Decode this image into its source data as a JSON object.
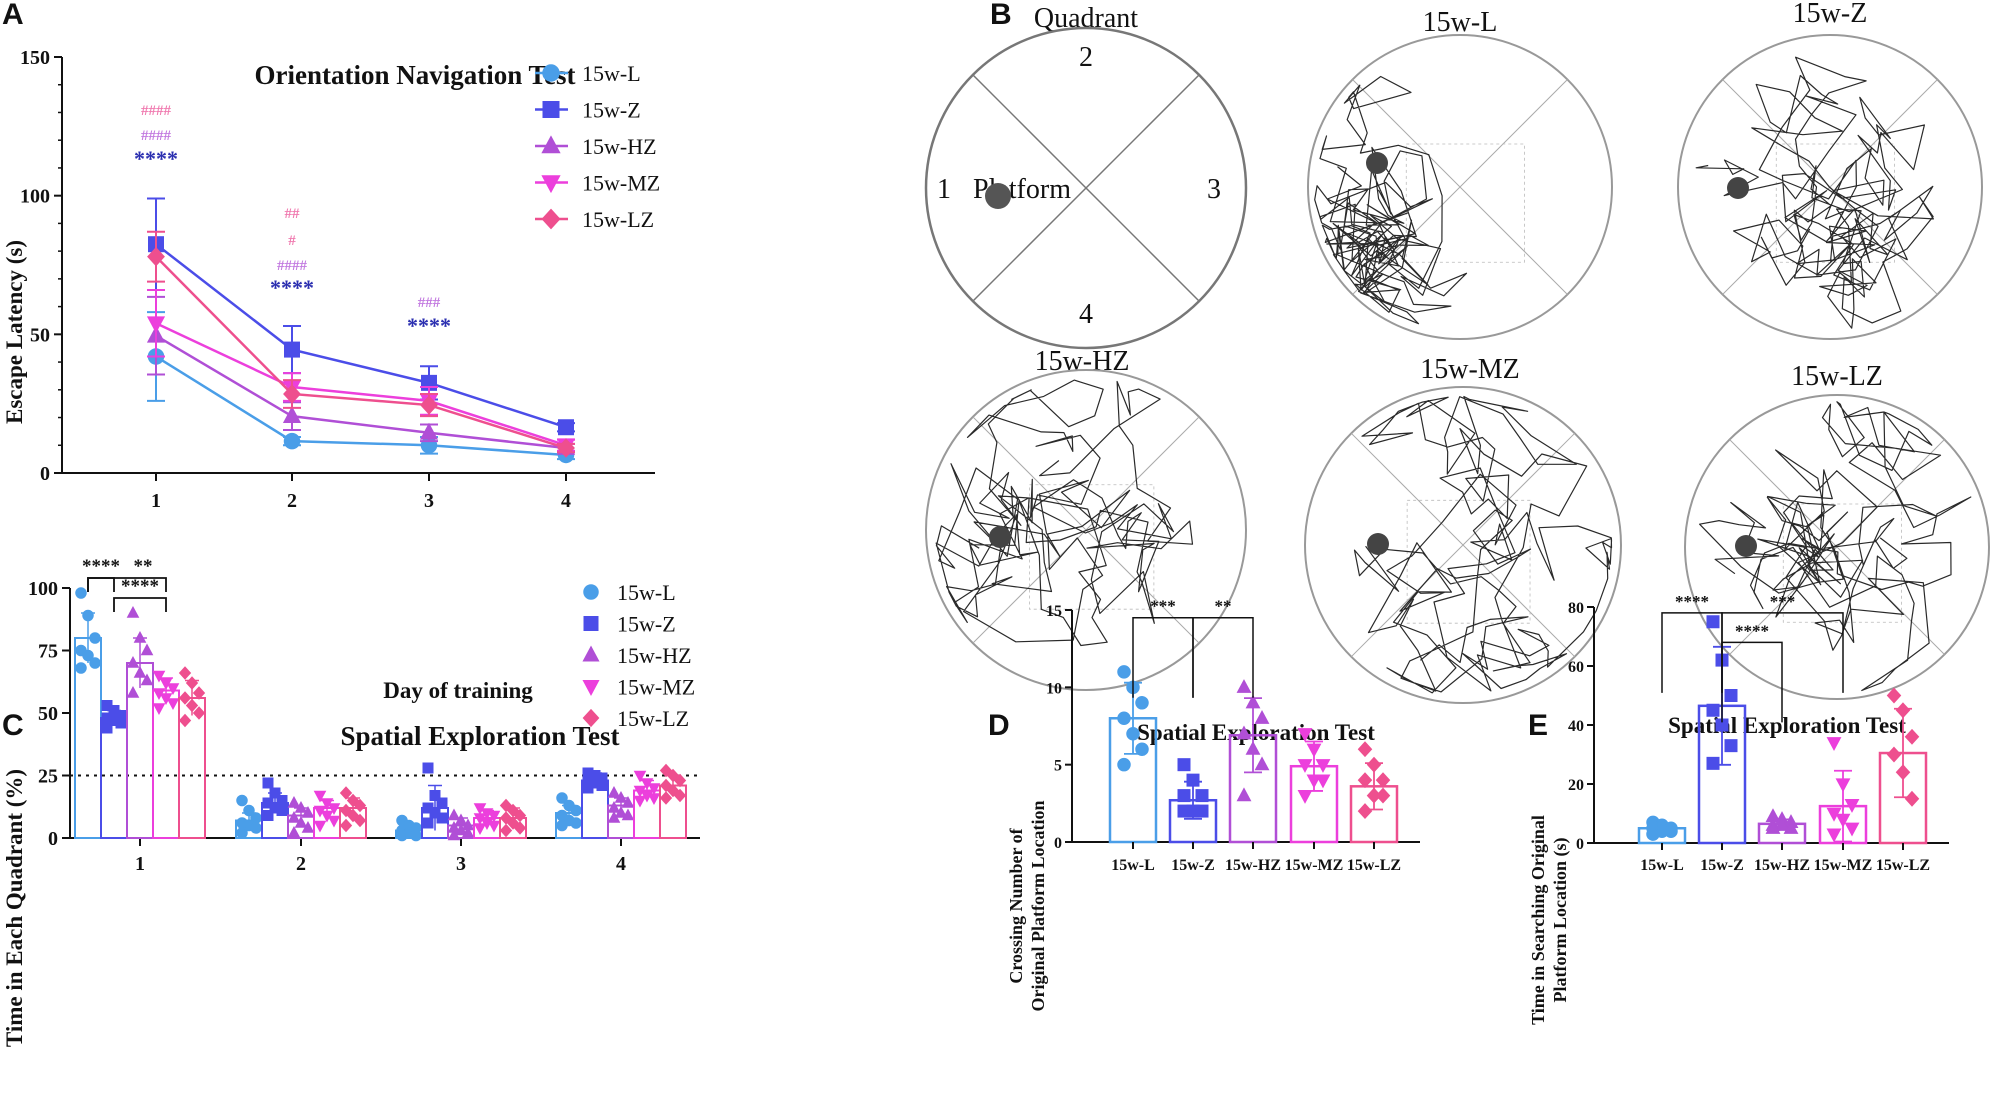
{
  "panel_labels": {
    "a": "A",
    "b": "B",
    "c": "C",
    "d": "D",
    "e": "E"
  },
  "colors": {
    "15w-L": "#4a9ee8",
    "15w-Z": "#4b4de8",
    "15w-HZ": "#b04fd6",
    "15w-MZ": "#ec3fdc",
    "15w-LZ": "#ee4f8e",
    "star": "#2b2fb0",
    "hash_HZ": "#c37be0",
    "hash_LZ": "#f07bb0",
    "track": "#2a2a2a"
  },
  "chart_data": [
    {
      "id": "A",
      "type": "line",
      "title": "Orientation Navigation Test",
      "xlabel": "Day of training",
      "ylabel": "Escape Latency (s)",
      "categories": [
        "1",
        "2",
        "3",
        "4"
      ],
      "ylim": [
        0,
        150
      ],
      "yticks": [
        "0",
        "50",
        "100",
        "150"
      ],
      "series": [
        {
          "name": "15w-L",
          "marker": "circle",
          "values": [
            42,
            11.5,
            10,
            6.5
          ],
          "errors": [
            16,
            1.5,
            3,
            1.5
          ]
        },
        {
          "name": "15w-Z",
          "marker": "square",
          "values": [
            82.5,
            44.5,
            32.5,
            16.5
          ],
          "errors": [
            16.5,
            8.5,
            6,
            1.5
          ]
        },
        {
          "name": "15w-HZ",
          "marker": "triangle-up",
          "values": [
            49.5,
            20.5,
            14.5,
            9
          ],
          "errors": [
            14,
            5,
            3,
            1.5
          ]
        },
        {
          "name": "15w-MZ",
          "marker": "triangle-down",
          "values": [
            54,
            31,
            26,
            10
          ],
          "errors": [
            12,
            5,
            5,
            2
          ]
        },
        {
          "name": "15w-LZ",
          "marker": "diamond",
          "values": [
            78,
            28.5,
            24.5,
            9
          ],
          "errors": [
            9,
            5,
            4,
            1.5
          ]
        }
      ],
      "annotations": [
        {
          "day": "1",
          "lines": [
            {
              "text": "####",
              "color": "hash_LZ"
            },
            {
              "text": "####",
              "color": "hash_HZ"
            },
            {
              "text": "****",
              "color": "star"
            }
          ]
        },
        {
          "day": "2",
          "lines": [
            {
              "text": "##",
              "color": "hash_LZ"
            },
            {
              "text": "#",
              "color": "hash_LZ"
            },
            {
              "text": "####",
              "color": "hash_HZ"
            },
            {
              "text": "****",
              "color": "star"
            }
          ]
        },
        {
          "day": "3",
          "lines": [
            {
              "text": "###",
              "color": "hash_HZ"
            },
            {
              "text": "****",
              "color": "star"
            }
          ]
        }
      ],
      "legend": "top-right"
    },
    {
      "id": "C",
      "type": "bar",
      "title": "Spatial Exploration Test",
      "xlabel": "",
      "ylabel": "Time in Each Quadrant (%)",
      "categories": [
        "1",
        "2",
        "3",
        "4"
      ],
      "ylim": [
        0,
        100
      ],
      "yticks": [
        "0",
        "25",
        "50",
        "75",
        "100"
      ],
      "reference_line": 25,
      "series": [
        {
          "name": "15w-L",
          "marker": "circle",
          "values": [
            80,
            7,
            3,
            10
          ],
          "errors": [
            10,
            3,
            2,
            3
          ],
          "points": [
            [
              98,
              89,
              80,
              75,
              73,
              70,
              68
            ],
            [
              15,
              11,
              8,
              6,
              5,
              4,
              2
            ],
            [
              7,
              5,
              4,
              3,
              2,
              1,
              1
            ],
            [
              16,
              13,
              11,
              9,
              7,
              6,
              5
            ]
          ]
        },
        {
          "name": "15w-Z",
          "marker": "square",
          "values": [
            48,
            14,
            12,
            23
          ],
          "errors": [
            3,
            4,
            9,
            3
          ],
          "points": [
            [
              53,
              51,
              49,
              48,
              47,
              46,
              44
            ],
            [
              22,
              18,
              15,
              14,
              12,
              11,
              9
            ],
            [
              28,
              17,
              14,
              12,
              10,
              8,
              6
            ],
            [
              26,
              25,
              24,
              23,
              22,
              21,
              20
            ]
          ]
        },
        {
          "name": "15w-HZ",
          "marker": "triangle-up",
          "values": [
            70,
            9,
            5,
            13
          ],
          "errors": [
            10,
            3,
            3,
            3
          ],
          "points": [
            [
              90,
              80,
              75,
              70,
              66,
              63,
              58
            ],
            [
              14,
              12,
              10,
              8,
              6,
              4,
              2
            ],
            [
              9,
              7,
              5,
              4,
              3,
              2,
              1
            ],
            [
              18,
              16,
              14,
              12,
              10,
              9,
              8
            ]
          ]
        },
        {
          "name": "15w-MZ",
          "marker": "triangle-down",
          "values": [
            59,
            12,
            8,
            19
          ],
          "errors": [
            5,
            3,
            3,
            4
          ],
          "points": [
            [
              65,
              62,
              60,
              58,
              56,
              54,
              52
            ],
            [
              17,
              14,
              12,
              11,
              9,
              7,
              5
            ],
            [
              12,
              10,
              9,
              8,
              6,
              5,
              4
            ],
            [
              25,
              22,
              20,
              19,
              17,
              16,
              15
            ]
          ]
        },
        {
          "name": "15w-LZ",
          "marker": "diamond",
          "values": [
            56,
            12,
            8,
            21
          ],
          "errors": [
            7,
            4,
            4,
            4
          ],
          "points": [
            [
              66,
              62,
              58,
              56,
              53,
              50,
              47
            ],
            [
              18,
              15,
              13,
              11,
              9,
              7,
              5
            ],
            [
              13,
              11,
              9,
              8,
              6,
              4,
              3
            ],
            [
              27,
              25,
              23,
              21,
              19,
              17,
              16
            ]
          ]
        }
      ],
      "brackets": [
        {
          "from": "15w-L",
          "to": "15w-Z",
          "level": 104,
          "label": "****"
        },
        {
          "from": "15w-L",
          "to": "15w-MZ",
          "level": 104,
          "label": "**"
        },
        {
          "from": "15w-Z",
          "to": "15w-MZ",
          "level": 96,
          "label": "****"
        }
      ],
      "legend": "top-right"
    },
    {
      "id": "D",
      "type": "bar",
      "title": "Spatial Exploration Test",
      "ylabel_lines": [
        "Crossing Number of",
        "Original Platform Location"
      ],
      "categories": [
        "15w-L",
        "15w-Z",
        "15w-HZ",
        "15w-MZ",
        "15w-LZ"
      ],
      "ylim": [
        0,
        15
      ],
      "yticks": [
        "0",
        "5",
        "10",
        "15"
      ],
      "values": [
        8,
        2.7,
        6.9,
        4.9,
        3.6
      ],
      "errors": [
        2.3,
        1.2,
        2.4,
        1.6,
        1.5
      ],
      "markers": [
        "circle",
        "square",
        "triangle-up",
        "triangle-down",
        "diamond"
      ],
      "points": [
        [
          11,
          10,
          9,
          8,
          7,
          6,
          5
        ],
        [
          5,
          4,
          3,
          3,
          2,
          2,
          2
        ],
        [
          10,
          9,
          8,
          7,
          6,
          5,
          3
        ],
        [
          7,
          6,
          5,
          5,
          4,
          4,
          3
        ],
        [
          6,
          5,
          4,
          4,
          3,
          3,
          2
        ]
      ],
      "brackets": [
        {
          "from": 0,
          "to": 1,
          "level": 14.5,
          "label": "***"
        },
        {
          "from": 1,
          "to": 2,
          "level": 14.5,
          "label": "**"
        }
      ]
    },
    {
      "id": "E",
      "type": "bar",
      "title": "Spatial Exploration Test",
      "ylabel_lines": [
        "Time in Searching Original",
        "Platform Location (s)"
      ],
      "categories": [
        "15w-L",
        "15w-Z",
        "15w-HZ",
        "15w-MZ",
        "15w-LZ"
      ],
      "ylim": [
        0,
        80
      ],
      "yticks": [
        "0",
        "20",
        "40",
        "60",
        "80"
      ],
      "values": [
        5,
        46.5,
        6.5,
        12.5,
        30.5
      ],
      "errors": [
        1.5,
        20,
        1.5,
        12,
        15
      ],
      "markers": [
        "circle",
        "square",
        "triangle-up",
        "triangle-down",
        "diamond"
      ],
      "points": [
        [
          7,
          6,
          5,
          5,
          4,
          4,
          3
        ],
        [
          75,
          62,
          50,
          45,
          40,
          33,
          27
        ],
        [
          9,
          8,
          7,
          6,
          6,
          5,
          5
        ],
        [
          34,
          20,
          13,
          10,
          8,
          5,
          3
        ],
        [
          50,
          45,
          36,
          30,
          24,
          15
        ]
      ],
      "brackets": [
        {
          "from": 0,
          "to": 1,
          "level": 78,
          "label": "****"
        },
        {
          "from": 1,
          "to": 3,
          "level": 78,
          "label": "***"
        },
        {
          "from": 1,
          "to": 2,
          "level": 68,
          "label": "****"
        }
      ]
    }
  ],
  "panel_b": {
    "schematic": {
      "title": "Quadrant",
      "quadrants": [
        "1",
        "2",
        "3",
        "4"
      ],
      "platform_label": "Platform"
    },
    "tracks": [
      "15w-L",
      "15w-Z",
      "15w-HZ",
      "15w-MZ",
      "15w-LZ"
    ]
  }
}
